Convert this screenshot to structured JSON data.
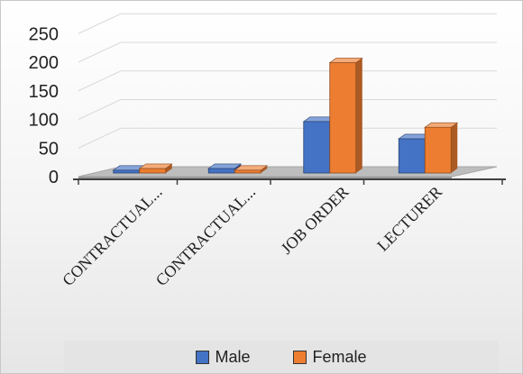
{
  "chart_data": {
    "type": "bar",
    "variant": "3d-clustered-column",
    "title": "",
    "xlabel": "",
    "ylabel": "",
    "categories": [
      "CONTRACTUAL...",
      "CONTRACTUAL...",
      "JOB ORDER",
      "LECTURER"
    ],
    "series": [
      {
        "name": "Male",
        "values": [
          5,
          8,
          90,
          60
        ],
        "color": "#4472c4"
      },
      {
        "name": "Female",
        "values": [
          8,
          5,
          193,
          80
        ],
        "color": "#ed7d31"
      }
    ],
    "ylim": [
      0,
      250
    ],
    "yticks": [
      0,
      50,
      100,
      150,
      200,
      250
    ],
    "grid": true,
    "legend": "bottom"
  }
}
